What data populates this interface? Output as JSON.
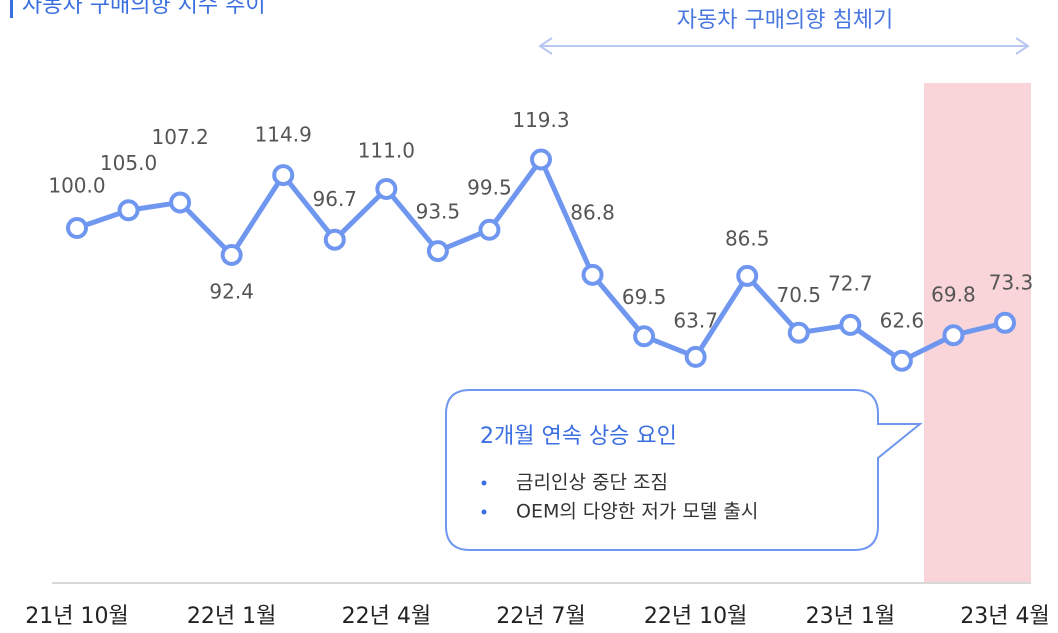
{
  "chart_data": {
    "type": "line",
    "title": "자동차 구매의향 지수 추이",
    "annotation": "자동차 구매의향 침체기",
    "callout": {
      "title": "2개월 연속 상승 요인",
      "items": [
        "금리인상 중단 조짐",
        "OEM의 다양한 저가 모델 출시"
      ]
    },
    "categories": [
      "21년 10월",
      null,
      null,
      "22년 1월",
      null,
      null,
      "22년 4월",
      null,
      null,
      "22년 7월",
      null,
      null,
      "22년 10월",
      null,
      null,
      "23년 1월",
      null,
      null,
      "23년 4월"
    ],
    "series": [
      {
        "name": "자동차 구매의향 지수",
        "color": "#7097f0",
        "values": [
          100.0,
          105.0,
          107.2,
          92.4,
          114.9,
          96.7,
          111.0,
          93.5,
          99.5,
          119.3,
          86.8,
          69.5,
          63.7,
          86.5,
          70.5,
          72.7,
          62.6,
          69.8,
          73.3
        ],
        "value_labels": [
          "100.0",
          "105.0",
          "107.2",
          "92.4",
          "114.9",
          "96.7",
          "111.0",
          "93.5",
          "99.5",
          "119.3",
          "86.8",
          "69.5",
          "63.7",
          "86.5",
          "70.5",
          "72.7",
          "62.6",
          "69.8",
          "73.3"
        ]
      }
    ],
    "ylim": [
      0,
      140
    ]
  }
}
